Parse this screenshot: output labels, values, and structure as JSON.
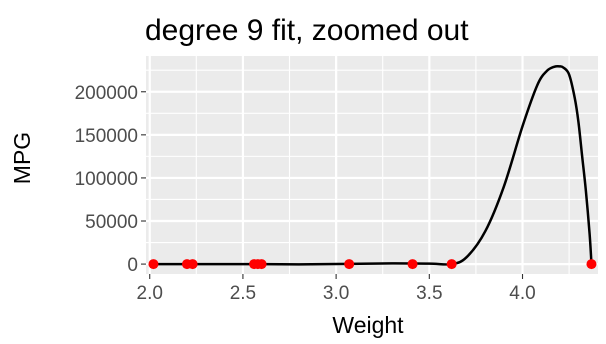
{
  "chart_data": {
    "type": "scatter",
    "title": "degree 9 fit, zoomed out",
    "xlabel": "Weight",
    "ylabel": "MPG",
    "xlim": [
      1.98,
      4.405
    ],
    "ylim": [
      -11500,
      241500
    ],
    "x_ticks": [
      2.0,
      2.5,
      3.0,
      3.5,
      4.0
    ],
    "x_tick_labels": [
      "2.0",
      "2.5",
      "3.0",
      "3.5",
      "4.0"
    ],
    "y_ticks": [
      0,
      50000,
      100000,
      150000,
      200000
    ],
    "y_tick_labels": [
      "0",
      "50000",
      "100000",
      "150000",
      "200000"
    ],
    "grid": true,
    "background": "#ebebeb",
    "series": [
      {
        "kind": "points",
        "color": "#ff0000",
        "x": [
          2.02,
          2.2,
          2.23,
          2.56,
          2.58,
          2.6,
          3.07,
          3.41,
          3.62,
          4.37
        ],
        "y": [
          0,
          0,
          0,
          0,
          0,
          0,
          0,
          0,
          0,
          0
        ]
      },
      {
        "kind": "line",
        "color": "#000000",
        "x": [
          2.02,
          2.2,
          2.5,
          2.8,
          3.07,
          3.3,
          3.5,
          3.62,
          3.7,
          3.8,
          3.9,
          4.0,
          4.08,
          4.13,
          4.17,
          4.2,
          4.22,
          4.25,
          4.28,
          4.3,
          4.32,
          4.34,
          4.36,
          4.37
        ],
        "y": [
          0,
          0,
          0,
          -300,
          300,
          800,
          500,
          0,
          8000,
          38000,
          90000,
          160000,
          208000,
          224000,
          229000,
          229500,
          228000,
          220000,
          193000,
          165000,
          125000,
          85000,
          35000,
          0
        ]
      }
    ]
  }
}
